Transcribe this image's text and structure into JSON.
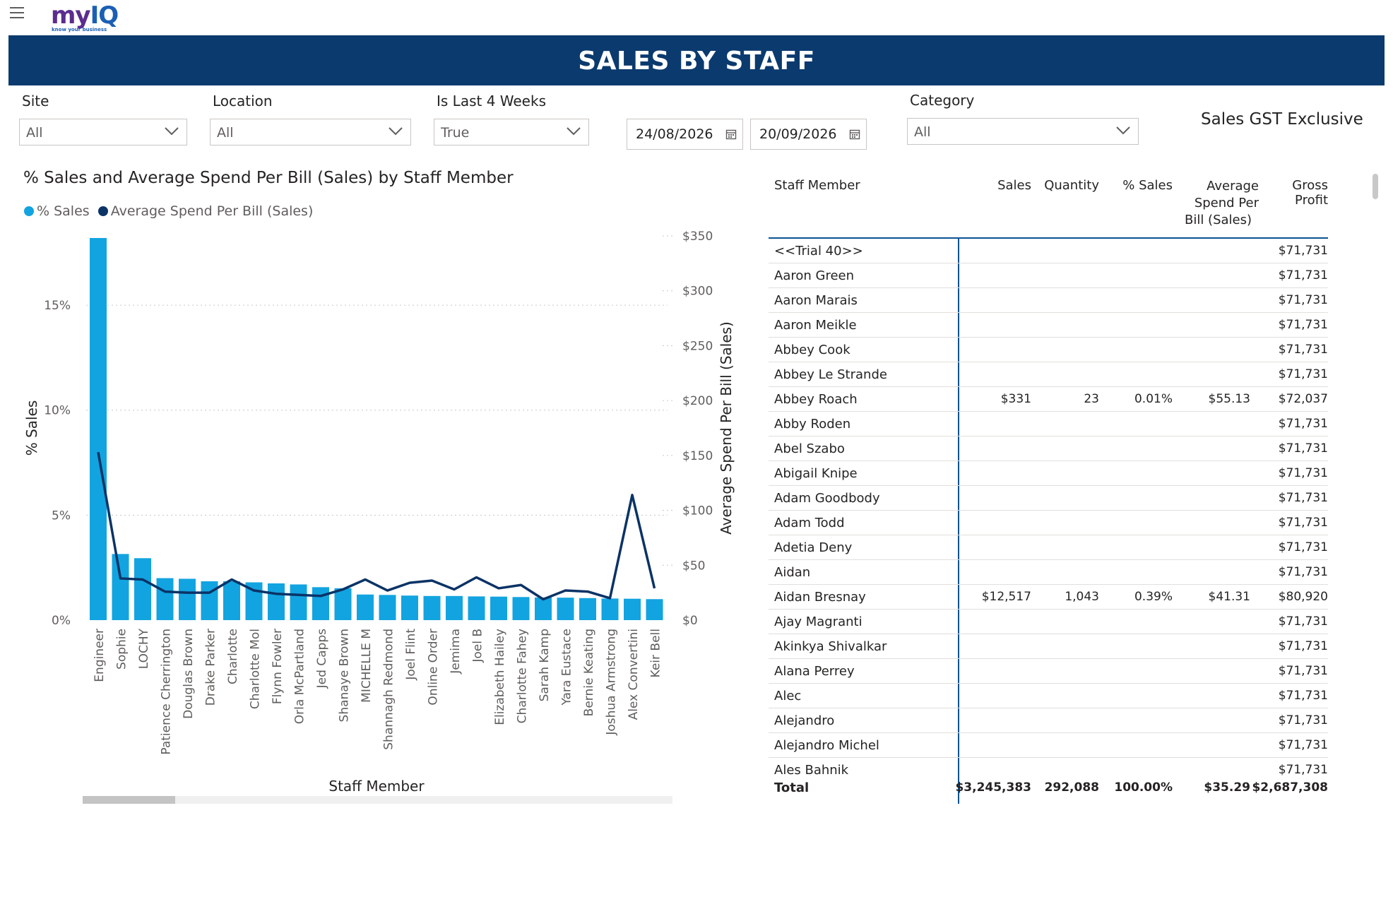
{
  "app": {
    "logo_main": "my",
    "logo_q": "IQ",
    "logo_tagline": "know your business",
    "page_title": "SALES BY STAFF"
  },
  "filters": {
    "site": {
      "label": "Site",
      "value": "All"
    },
    "location": {
      "label": "Location",
      "value": "All"
    },
    "last4weeks": {
      "label": "Is Last 4 Weeks",
      "value": "True"
    },
    "date_from": "24/08/2026",
    "date_to": "20/09/2026",
    "category": {
      "label": "Category",
      "value": "All"
    },
    "gst_note": "Sales GST Exclusive"
  },
  "colors": {
    "banner": "#0b3a6e",
    "bar": "#12a4e0",
    "line": "#0b3366"
  },
  "chart_data": {
    "type": "bar",
    "title": "% Sales and Average Spend Per Bill (Sales) by Staff Member",
    "xlabel": "Staff Member",
    "ylabel": "% Sales",
    "y2label": "Average Spend Per Bill (Sales)",
    "legend_position": "top-left",
    "grid": true,
    "ylim": [
      0,
      18.3
    ],
    "y2lim": [
      0,
      350
    ],
    "yticks": [
      "0%",
      "5%",
      "10%",
      "15%"
    ],
    "y2ticks": [
      "$0",
      "$50",
      "$100",
      "$150",
      "$200",
      "$250",
      "$300",
      "$350"
    ],
    "categories": [
      "Engineer",
      "Sophie",
      "LOCHY",
      "Patience Cherrington",
      "Douglas Brown",
      "Drake Parker",
      "Charlotte",
      "Charlotte Mol",
      "Flynn Fowler",
      "Orla McPartland",
      "Jed Capps",
      "Shanaye Brown",
      "MICHELLE M",
      "Shannagh Redmond",
      "Joel Flint",
      "Online Order",
      "Jemima",
      "Joel B",
      "Elizabeth Hailey",
      "Charlotte Fahey",
      "Sarah Kamp",
      "Yara Eustace",
      "Bernie Keating",
      "Joshua Armstrong",
      "Alex Convertini",
      "Keir Bell"
    ],
    "series": [
      {
        "name": "% Sales",
        "type": "bar",
        "values": [
          18.2,
          3.15,
          2.95,
          2.0,
          1.97,
          1.85,
          1.85,
          1.8,
          1.75,
          1.7,
          1.57,
          1.52,
          1.22,
          1.2,
          1.17,
          1.15,
          1.15,
          1.13,
          1.12,
          1.1,
          1.08,
          1.07,
          1.05,
          1.03,
          1.02,
          1.0
        ]
      },
      {
        "name": "Average Spend Per Bill (Sales)",
        "type": "line",
        "values": [
          153,
          38,
          37,
          26,
          25,
          25,
          37,
          27,
          24,
          23,
          22,
          28,
          37,
          27,
          34,
          36,
          28,
          39,
          29,
          32,
          19,
          27,
          26,
          20,
          114,
          29
        ]
      }
    ]
  },
  "table": {
    "columns": [
      "Staff Member",
      "Sales",
      "Quantity",
      "% Sales",
      "Average Spend Per Bill (Sales)",
      "Gross Profit"
    ],
    "col_avg_line1": "Average",
    "col_avg_line2": "Spend Per",
    "col_avg_line3": "Bill (Sales)",
    "rows": [
      {
        "name": "<<Trial 40>>",
        "sales": "",
        "qty": "",
        "pct": "",
        "avg": "",
        "gp": "$71,731"
      },
      {
        "name": "Aaron Green",
        "sales": "",
        "qty": "",
        "pct": "",
        "avg": "",
        "gp": "$71,731"
      },
      {
        "name": "Aaron Marais",
        "sales": "",
        "qty": "",
        "pct": "",
        "avg": "",
        "gp": "$71,731"
      },
      {
        "name": "Aaron Meikle",
        "sales": "",
        "qty": "",
        "pct": "",
        "avg": "",
        "gp": "$71,731"
      },
      {
        "name": "Abbey Cook",
        "sales": "",
        "qty": "",
        "pct": "",
        "avg": "",
        "gp": "$71,731"
      },
      {
        "name": "Abbey Le Strande",
        "sales": "",
        "qty": "",
        "pct": "",
        "avg": "",
        "gp": "$71,731"
      },
      {
        "name": "Abbey Roach",
        "sales": "$331",
        "qty": "23",
        "pct": "0.01%",
        "avg": "$55.13",
        "gp": "$72,037"
      },
      {
        "name": "Abby Roden",
        "sales": "",
        "qty": "",
        "pct": "",
        "avg": "",
        "gp": "$71,731"
      },
      {
        "name": "Abel Szabo",
        "sales": "",
        "qty": "",
        "pct": "",
        "avg": "",
        "gp": "$71,731"
      },
      {
        "name": "Abigail Knipe",
        "sales": "",
        "qty": "",
        "pct": "",
        "avg": "",
        "gp": "$71,731"
      },
      {
        "name": "Adam Goodbody",
        "sales": "",
        "qty": "",
        "pct": "",
        "avg": "",
        "gp": "$71,731"
      },
      {
        "name": "Adam Todd",
        "sales": "",
        "qty": "",
        "pct": "",
        "avg": "",
        "gp": "$71,731"
      },
      {
        "name": "Adetia Deny",
        "sales": "",
        "qty": "",
        "pct": "",
        "avg": "",
        "gp": "$71,731"
      },
      {
        "name": "Aidan",
        "sales": "",
        "qty": "",
        "pct": "",
        "avg": "",
        "gp": "$71,731"
      },
      {
        "name": "Aidan Bresnay",
        "sales": "$12,517",
        "qty": "1,043",
        "pct": "0.39%",
        "avg": "$41.31",
        "gp": "$80,920"
      },
      {
        "name": "Ajay Magranti",
        "sales": "",
        "qty": "",
        "pct": "",
        "avg": "",
        "gp": "$71,731"
      },
      {
        "name": "Akinkya Shivalkar",
        "sales": "",
        "qty": "",
        "pct": "",
        "avg": "",
        "gp": "$71,731"
      },
      {
        "name": "Alana Perrey",
        "sales": "",
        "qty": "",
        "pct": "",
        "avg": "",
        "gp": "$71,731"
      },
      {
        "name": "Alec",
        "sales": "",
        "qty": "",
        "pct": "",
        "avg": "",
        "gp": "$71,731"
      },
      {
        "name": "Alejandro",
        "sales": "",
        "qty": "",
        "pct": "",
        "avg": "",
        "gp": "$71,731"
      },
      {
        "name": "Alejandro Michel",
        "sales": "",
        "qty": "",
        "pct": "",
        "avg": "",
        "gp": "$71,731"
      },
      {
        "name": "Ales Bahnik",
        "sales": "",
        "qty": "",
        "pct": "",
        "avg": "",
        "gp": "$71,731"
      }
    ],
    "total": {
      "name": "Total",
      "sales": "$3,245,383",
      "qty": "292,088",
      "pct": "100.00%",
      "avg": "$35.29",
      "gp": "$2,687,308"
    }
  }
}
